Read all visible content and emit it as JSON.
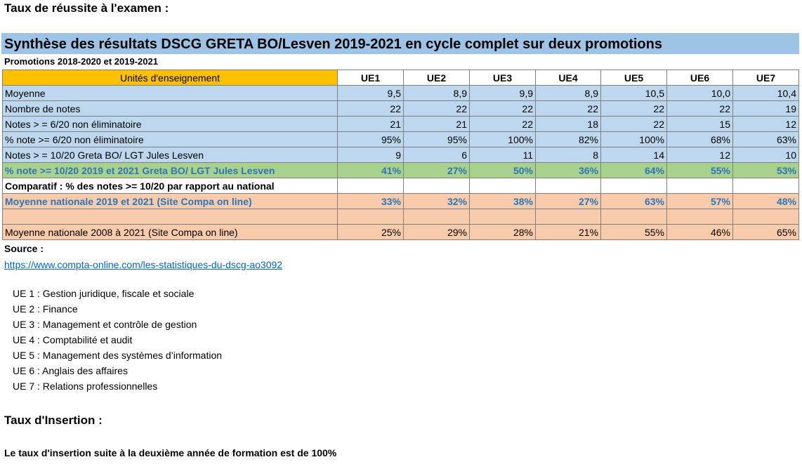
{
  "heading": "Taux de réussite à l'examen :",
  "title": "Synthèse des résultats DSCG GRETA BO/Lesven 2019-2021 en cycle complet sur deux promotions",
  "promotions": "Promotions 2018-2020 et 2019-2021",
  "table": {
    "header_label": "Unités d'enseignement",
    "columns": [
      "UE1",
      "UE2",
      "UE3",
      "UE4",
      "UE5",
      "UE6",
      "UE7"
    ],
    "rows": [
      {
        "label": "Moyenne",
        "values": [
          "9,5",
          "8,9",
          "9,9",
          "8,9",
          "10,5",
          "10,0",
          "10,4"
        ]
      },
      {
        "label": "Nombre de notes",
        "values": [
          "22",
          "22",
          "22",
          "22",
          "22",
          "22",
          "19"
        ]
      },
      {
        "label": "Notes > = 6/20 non éliminatoire",
        "values": [
          "21",
          "21",
          "22",
          "18",
          "22",
          "15",
          "12"
        ]
      },
      {
        "label": "% note >= 6/20 non éliminatoire",
        "values": [
          "95%",
          "95%",
          "100%",
          "82%",
          "100%",
          "68%",
          "63%"
        ]
      },
      {
        "label": "Notes > = 10/20 Greta BO/ LGT Jules Lesven",
        "values": [
          "9",
          "6",
          "11",
          "8",
          "14",
          "12",
          "10"
        ]
      },
      {
        "label": "% note >= 10/20  2019 et 2021 Greta BO/ LGT Jules Lesven",
        "values": [
          "41%",
          "27%",
          "50%",
          "36%",
          "64%",
          "55%",
          "53%"
        ]
      },
      {
        "label": "Comparatif : % des notes >= 10/20 par rapport au national",
        "values": [
          "",
          "",
          "",
          "",
          "",
          "",
          ""
        ]
      },
      {
        "label": "Moyenne nationale 2019 et 2021 (Site Compa on line)",
        "values": [
          "33%",
          "32%",
          "38%",
          "27%",
          "63%",
          "57%",
          "48%"
        ]
      },
      {
        "label": "",
        "values": [
          "",
          "",
          "",
          "",
          "",
          "",
          ""
        ]
      },
      {
        "label": "Moyenne nationale 2008 à 2021 (Site Compa on line)",
        "values": [
          "25%",
          "29%",
          "28%",
          "21%",
          "55%",
          "46%",
          "65%"
        ]
      }
    ]
  },
  "source_label": "Source :",
  "source_link": "https://www.compta-online.com/les-statistiques-du-dscg-ao3092",
  "ue_list": [
    "UE 1 : Gestion juridique, fiscale et sociale",
    "UE 2 : Finance",
    "UE 3 : Management et contrôle de gestion",
    "UE 4 : Comptabilité et audit",
    "UE 5 : Management des systèmes d’information",
    "UE 6 : Anglais des affaires",
    "UE 7 : Relations professionnelles"
  ],
  "insertion_title": "Taux d'Insertion :",
  "insertion_text": "Le taux d'insertion suite à la deuxième année de formation est de 100%",
  "colors": {
    "title_bar": "#9DC3E6",
    "header_label": "#FFC000",
    "blue_rows": "#BDD7EE",
    "green_row": "#A9D18E",
    "national_rows": "#F8CBAD",
    "accent_text": "#2E75B6",
    "link": "#0563C1"
  }
}
